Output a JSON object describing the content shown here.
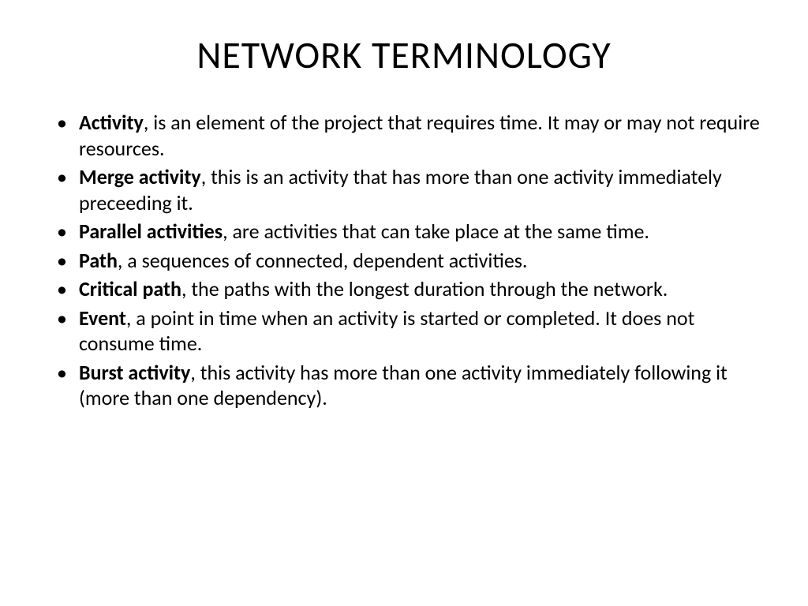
{
  "title": "NETWORK TERMINOLOGY",
  "items": [
    {
      "term": "Activity",
      "definition": ", is an element of the project that requires time. It may or may not require resources."
    },
    {
      "term": "Merge activity",
      "definition": ", this is an activity that has more than one activity immediately preceeding it."
    },
    {
      "term": "Parallel activities",
      "definition": ", are activities that can take place at the same time."
    },
    {
      "term": "Path",
      "definition": ", a sequences of connected, dependent activities."
    },
    {
      "term": "Critical path",
      "definition": ", the paths with the longest duration through the network."
    },
    {
      "term": "Event",
      "definition": ", a point in time when an activity is started or completed. It does not consume time."
    },
    {
      "term": "Burst activity",
      "definition": ", this activity has more than one activity immediately following it (more than one dependency)."
    }
  ],
  "styling": {
    "background_color": "#ffffff",
    "text_color": "#000000",
    "title_fontsize": 48,
    "body_fontsize": 26,
    "font_family": "Calibri"
  }
}
